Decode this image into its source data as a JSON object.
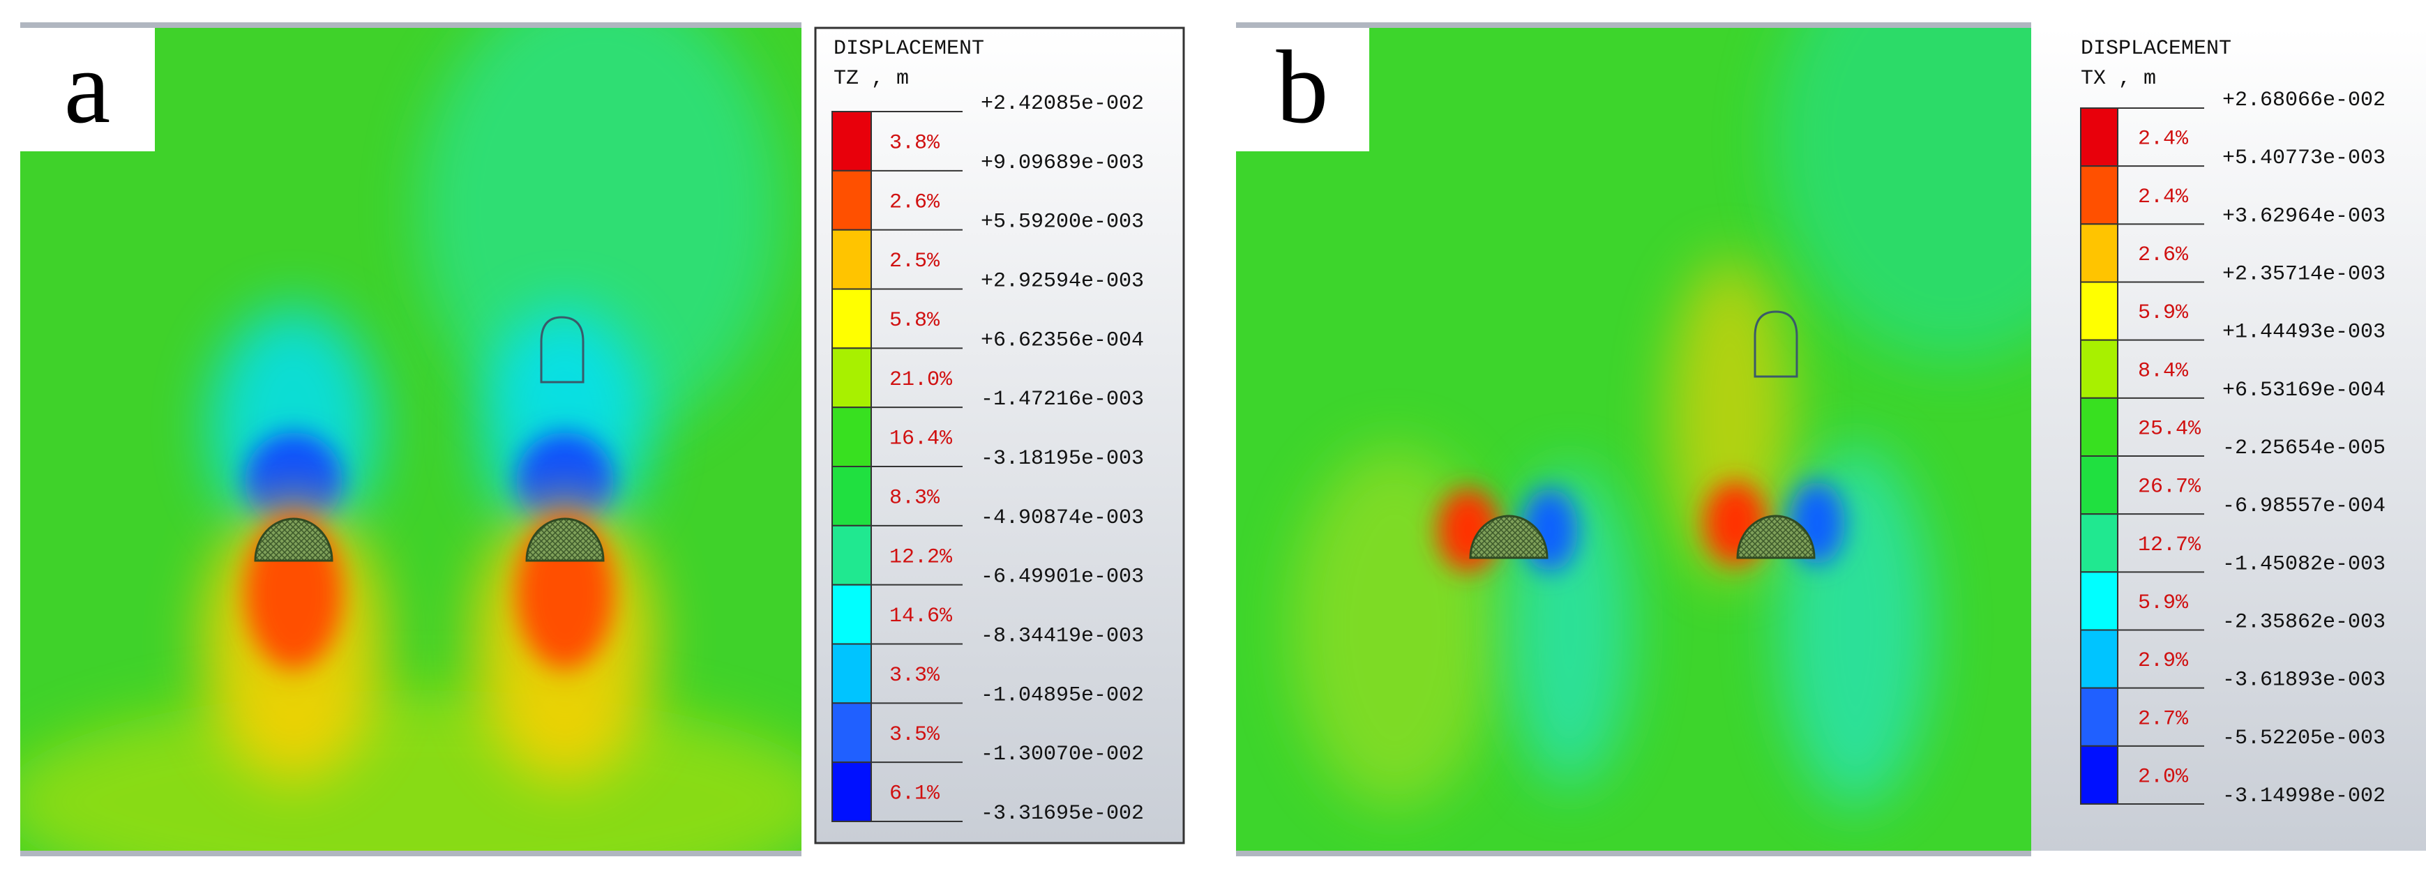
{
  "panels": [
    {
      "label": "a",
      "legend": {
        "title": "DISPLACEMENT",
        "unit": "TZ , m",
        "levels": [
          "+2.42085e-002",
          "+9.09689e-003",
          "+5.59200e-003",
          "+2.92594e-003",
          "+6.62356e-004",
          "-1.47216e-003",
          "-3.18195e-003",
          "-4.90874e-003",
          "-6.49901e-003",
          "-8.34419e-003",
          "-1.04895e-002",
          "-1.30070e-002",
          "-3.31695e-002"
        ],
        "percents": [
          "3.8%",
          "2.6%",
          "2.5%",
          "5.8%",
          "21.0%",
          "16.4%",
          "8.3%",
          "12.2%",
          "14.6%",
          "3.3%",
          "3.5%",
          "6.1%"
        ]
      }
    },
    {
      "label": "b",
      "legend": {
        "title": "DISPLACEMENT",
        "unit": "TX , m",
        "levels": [
          "+2.68066e-002",
          "+5.40773e-003",
          "+3.62964e-003",
          "+2.35714e-003",
          "+1.44493e-003",
          "+6.53169e-004",
          "-2.25654e-005",
          "-6.98557e-004",
          "-1.45082e-003",
          "-2.35862e-003",
          "-3.61893e-003",
          "-5.52205e-003",
          "-3.14998e-002"
        ],
        "percents": [
          "2.4%",
          "2.4%",
          "2.6%",
          "5.9%",
          "8.4%",
          "25.4%",
          "26.7%",
          "12.7%",
          "5.9%",
          "2.9%",
          "2.7%",
          "2.0%"
        ]
      }
    }
  ]
}
